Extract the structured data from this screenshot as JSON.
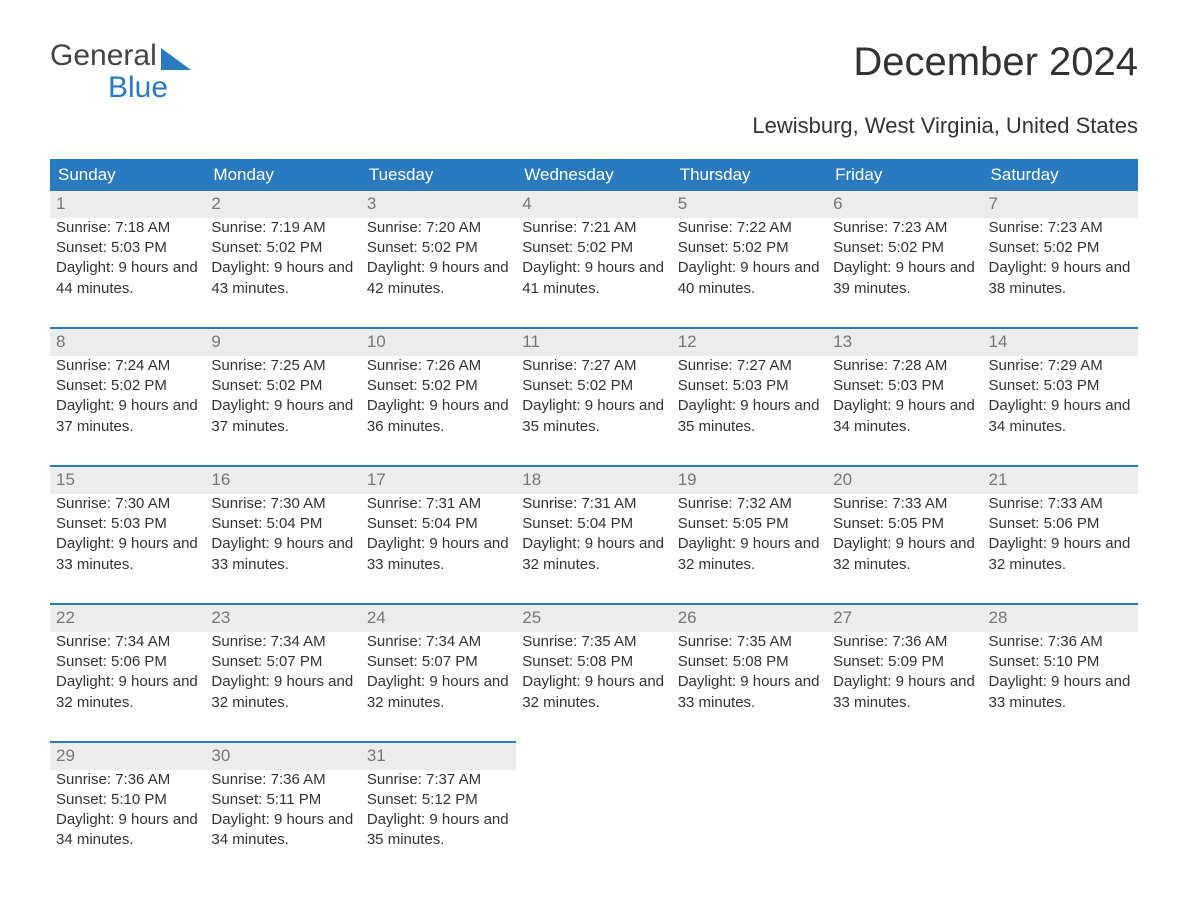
{
  "logo": {
    "line1": "General",
    "line2": "Blue"
  },
  "title": "December 2024",
  "subtitle": "Lewisburg, West Virginia, United States",
  "colors": {
    "header_bg": "#2a7ac0",
    "header_text": "#ffffff",
    "daybar_bg": "#ececec",
    "daybar_border": "#2a7ac0",
    "body_text": "#333333",
    "daynum_text": "#777777",
    "page_bg": "#ffffff"
  },
  "day_headers": [
    "Sunday",
    "Monday",
    "Tuesday",
    "Wednesday",
    "Thursday",
    "Friday",
    "Saturday"
  ],
  "weeks": [
    [
      {
        "n": "1",
        "sr": "7:18 AM",
        "ss": "5:03 PM",
        "dl": "9 hours and 44 minutes."
      },
      {
        "n": "2",
        "sr": "7:19 AM",
        "ss": "5:02 PM",
        "dl": "9 hours and 43 minutes."
      },
      {
        "n": "3",
        "sr": "7:20 AM",
        "ss": "5:02 PM",
        "dl": "9 hours and 42 minutes."
      },
      {
        "n": "4",
        "sr": "7:21 AM",
        "ss": "5:02 PM",
        "dl": "9 hours and 41 minutes."
      },
      {
        "n": "5",
        "sr": "7:22 AM",
        "ss": "5:02 PM",
        "dl": "9 hours and 40 minutes."
      },
      {
        "n": "6",
        "sr": "7:23 AM",
        "ss": "5:02 PM",
        "dl": "9 hours and 39 minutes."
      },
      {
        "n": "7",
        "sr": "7:23 AM",
        "ss": "5:02 PM",
        "dl": "9 hours and 38 minutes."
      }
    ],
    [
      {
        "n": "8",
        "sr": "7:24 AM",
        "ss": "5:02 PM",
        "dl": "9 hours and 37 minutes."
      },
      {
        "n": "9",
        "sr": "7:25 AM",
        "ss": "5:02 PM",
        "dl": "9 hours and 37 minutes."
      },
      {
        "n": "10",
        "sr": "7:26 AM",
        "ss": "5:02 PM",
        "dl": "9 hours and 36 minutes."
      },
      {
        "n": "11",
        "sr": "7:27 AM",
        "ss": "5:02 PM",
        "dl": "9 hours and 35 minutes."
      },
      {
        "n": "12",
        "sr": "7:27 AM",
        "ss": "5:03 PM",
        "dl": "9 hours and 35 minutes."
      },
      {
        "n": "13",
        "sr": "7:28 AM",
        "ss": "5:03 PM",
        "dl": "9 hours and 34 minutes."
      },
      {
        "n": "14",
        "sr": "7:29 AM",
        "ss": "5:03 PM",
        "dl": "9 hours and 34 minutes."
      }
    ],
    [
      {
        "n": "15",
        "sr": "7:30 AM",
        "ss": "5:03 PM",
        "dl": "9 hours and 33 minutes."
      },
      {
        "n": "16",
        "sr": "7:30 AM",
        "ss": "5:04 PM",
        "dl": "9 hours and 33 minutes."
      },
      {
        "n": "17",
        "sr": "7:31 AM",
        "ss": "5:04 PM",
        "dl": "9 hours and 33 minutes."
      },
      {
        "n": "18",
        "sr": "7:31 AM",
        "ss": "5:04 PM",
        "dl": "9 hours and 32 minutes."
      },
      {
        "n": "19",
        "sr": "7:32 AM",
        "ss": "5:05 PM",
        "dl": "9 hours and 32 minutes."
      },
      {
        "n": "20",
        "sr": "7:33 AM",
        "ss": "5:05 PM",
        "dl": "9 hours and 32 minutes."
      },
      {
        "n": "21",
        "sr": "7:33 AM",
        "ss": "5:06 PM",
        "dl": "9 hours and 32 minutes."
      }
    ],
    [
      {
        "n": "22",
        "sr": "7:34 AM",
        "ss": "5:06 PM",
        "dl": "9 hours and 32 minutes."
      },
      {
        "n": "23",
        "sr": "7:34 AM",
        "ss": "5:07 PM",
        "dl": "9 hours and 32 minutes."
      },
      {
        "n": "24",
        "sr": "7:34 AM",
        "ss": "5:07 PM",
        "dl": "9 hours and 32 minutes."
      },
      {
        "n": "25",
        "sr": "7:35 AM",
        "ss": "5:08 PM",
        "dl": "9 hours and 32 minutes."
      },
      {
        "n": "26",
        "sr": "7:35 AM",
        "ss": "5:08 PM",
        "dl": "9 hours and 33 minutes."
      },
      {
        "n": "27",
        "sr": "7:36 AM",
        "ss": "5:09 PM",
        "dl": "9 hours and 33 minutes."
      },
      {
        "n": "28",
        "sr": "7:36 AM",
        "ss": "5:10 PM",
        "dl": "9 hours and 33 minutes."
      }
    ],
    [
      {
        "n": "29",
        "sr": "7:36 AM",
        "ss": "5:10 PM",
        "dl": "9 hours and 34 minutes."
      },
      {
        "n": "30",
        "sr": "7:36 AM",
        "ss": "5:11 PM",
        "dl": "9 hours and 34 minutes."
      },
      {
        "n": "31",
        "sr": "7:37 AM",
        "ss": "5:12 PM",
        "dl": "9 hours and 35 minutes."
      },
      null,
      null,
      null,
      null
    ]
  ],
  "labels": {
    "sunrise": "Sunrise: ",
    "sunset": "Sunset: ",
    "daylight": "Daylight: "
  }
}
